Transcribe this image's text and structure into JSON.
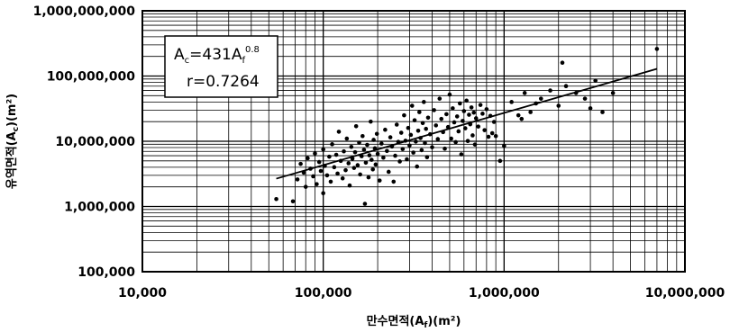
{
  "chart_data": {
    "type": "scatter",
    "xlabel_main": "만수면적(A",
    "xlabel_sub": "f",
    "xlabel_tail": ")(m²)",
    "ylabel_main": "유역면적(A",
    "ylabel_sub": "c",
    "ylabel_tail": ")(m²)",
    "x_scale": "log",
    "y_scale": "log",
    "xlim": [
      10000,
      10000000
    ],
    "ylim": [
      100000,
      1000000000
    ],
    "x_ticks": [
      10000,
      100000,
      1000000,
      10000000
    ],
    "x_tick_labels": [
      "10,000",
      "100,000",
      "1,000,000",
      "10,000,000"
    ],
    "y_ticks": [
      100000,
      1000000,
      10000000,
      100000000,
      1000000000
    ],
    "y_tick_labels": [
      "100,000",
      "1,000,000",
      "10,000,000",
      "100,000,000",
      "1,000,000,000"
    ],
    "grid": true,
    "annotation": {
      "eq_a": "A",
      "eq_a_sub": "c",
      "eq_mid": "=431A",
      "eq_b_sub": "f",
      "eq_exp": "0.8",
      "r_text": "r=0.7264"
    },
    "fit_line": {
      "coef": 431,
      "exponent": 0.8,
      "x_range": [
        55000,
        7000000
      ]
    },
    "points": [
      [
        55000,
        1300000
      ],
      [
        68000,
        1200000
      ],
      [
        72000,
        2600000
      ],
      [
        75000,
        4500000
      ],
      [
        78000,
        3300000
      ],
      [
        80000,
        2000000
      ],
      [
        82000,
        5500000
      ],
      [
        85000,
        3800000
      ],
      [
        88000,
        2900000
      ],
      [
        90000,
        6500000
      ],
      [
        92000,
        2200000
      ],
      [
        95000,
        4800000
      ],
      [
        97000,
        3500000
      ],
      [
        100000,
        1600000
      ],
      [
        100000,
        7500000
      ],
      [
        102000,
        4200000
      ],
      [
        105000,
        3000000
      ],
      [
        108000,
        5800000
      ],
      [
        110000,
        2400000
      ],
      [
        112000,
        9000000
      ],
      [
        115000,
        4000000
      ],
      [
        118000,
        6200000
      ],
      [
        120000,
        3200000
      ],
      [
        122000,
        14000000
      ],
      [
        125000,
        5000000
      ],
      [
        128000,
        2700000
      ],
      [
        130000,
        7000000
      ],
      [
        133000,
        3600000
      ],
      [
        135000,
        11000000
      ],
      [
        138000,
        4600000
      ],
      [
        140000,
        2100000
      ],
      [
        143000,
        8200000
      ],
      [
        145000,
        5400000
      ],
      [
        148000,
        3900000
      ],
      [
        150000,
        6800000
      ],
      [
        152000,
        17000000
      ],
      [
        155000,
        4300000
      ],
      [
        158000,
        9500000
      ],
      [
        160000,
        3100000
      ],
      [
        163000,
        5900000
      ],
      [
        165000,
        12000000
      ],
      [
        168000,
        7400000
      ],
      [
        170000,
        1100000
      ],
      [
        172000,
        4700000
      ],
      [
        175000,
        8800000
      ],
      [
        178000,
        2800000
      ],
      [
        180000,
        6100000
      ],
      [
        183000,
        20000000
      ],
      [
        185000,
        5200000
      ],
      [
        188000,
        3700000
      ],
      [
        190000,
        10500000
      ],
      [
        193000,
        7800000
      ],
      [
        195000,
        4400000
      ],
      [
        198000,
        13000000
      ],
      [
        200000,
        6400000
      ],
      [
        205000,
        2500000
      ],
      [
        210000,
        9200000
      ],
      [
        215000,
        5600000
      ],
      [
        220000,
        15000000
      ],
      [
        225000,
        7100000
      ],
      [
        230000,
        3400000
      ],
      [
        235000,
        11500000
      ],
      [
        240000,
        8300000
      ],
      [
        245000,
        2400000
      ],
      [
        250000,
        6000000
      ],
      [
        255000,
        18000000
      ],
      [
        260000,
        9800000
      ],
      [
        265000,
        4900000
      ],
      [
        270000,
        13500000
      ],
      [
        275000,
        7600000
      ],
      [
        280000,
        25000000
      ],
      [
        285000,
        10200000
      ],
      [
        290000,
        5300000
      ],
      [
        295000,
        16000000
      ],
      [
        300000,
        8600000
      ],
      [
        305000,
        12500000
      ],
      [
        310000,
        35000000
      ],
      [
        315000,
        6700000
      ],
      [
        320000,
        21000000
      ],
      [
        325000,
        9900000
      ],
      [
        330000,
        4100000
      ],
      [
        335000,
        14500000
      ],
      [
        340000,
        28000000
      ],
      [
        345000,
        11200000
      ],
      [
        350000,
        7300000
      ],
      [
        355000,
        19000000
      ],
      [
        360000,
        40000000
      ],
      [
        365000,
        9400000
      ],
      [
        370000,
        15500000
      ],
      [
        375000,
        5700000
      ],
      [
        380000,
        23000000
      ],
      [
        390000,
        12800000
      ],
      [
        400000,
        8100000
      ],
      [
        410000,
        30000000
      ],
      [
        420000,
        17500000
      ],
      [
        430000,
        10800000
      ],
      [
        440000,
        45000000
      ],
      [
        450000,
        22000000
      ],
      [
        460000,
        13800000
      ],
      [
        470000,
        7700000
      ],
      [
        480000,
        26000000
      ],
      [
        490000,
        16500000
      ],
      [
        500000,
        52000000
      ],
      [
        510000,
        11000000
      ],
      [
        520000,
        32000000
      ],
      [
        530000,
        19500000
      ],
      [
        540000,
        9700000
      ],
      [
        550000,
        24000000
      ],
      [
        560000,
        14200000
      ],
      [
        570000,
        38000000
      ],
      [
        580000,
        6300000
      ],
      [
        590000,
        20500000
      ],
      [
        600000,
        29000000
      ],
      [
        610000,
        15800000
      ],
      [
        620000,
        42000000
      ],
      [
        630000,
        10100000
      ],
      [
        640000,
        25500000
      ],
      [
        650000,
        18200000
      ],
      [
        660000,
        33000000
      ],
      [
        670000,
        12300000
      ],
      [
        680000,
        27500000
      ],
      [
        690000,
        8900000
      ],
      [
        700000,
        22500000
      ],
      [
        720000,
        16800000
      ],
      [
        740000,
        36000000
      ],
      [
        760000,
        26500000
      ],
      [
        780000,
        14800000
      ],
      [
        800000,
        31000000
      ],
      [
        820000,
        11700000
      ],
      [
        840000,
        24500000
      ],
      [
        860000,
        13300000
      ],
      [
        880000,
        19800000
      ],
      [
        900000,
        12000000
      ],
      [
        950000,
        5000000
      ],
      [
        1000000,
        8500000
      ],
      [
        1100000,
        40000000
      ],
      [
        1200000,
        25000000
      ],
      [
        1250000,
        22000000
      ],
      [
        1300000,
        55000000
      ],
      [
        1400000,
        28000000
      ],
      [
        1500000,
        38000000
      ],
      [
        1600000,
        45000000
      ],
      [
        1800000,
        60000000
      ],
      [
        2000000,
        35000000
      ],
      [
        2100000,
        160000000
      ],
      [
        2200000,
        70000000
      ],
      [
        2500000,
        55000000
      ],
      [
        2800000,
        45000000
      ],
      [
        3000000,
        32000000
      ],
      [
        3200000,
        85000000
      ],
      [
        3500000,
        28000000
      ],
      [
        4000000,
        55000000
      ],
      [
        7000000,
        260000000
      ]
    ]
  }
}
